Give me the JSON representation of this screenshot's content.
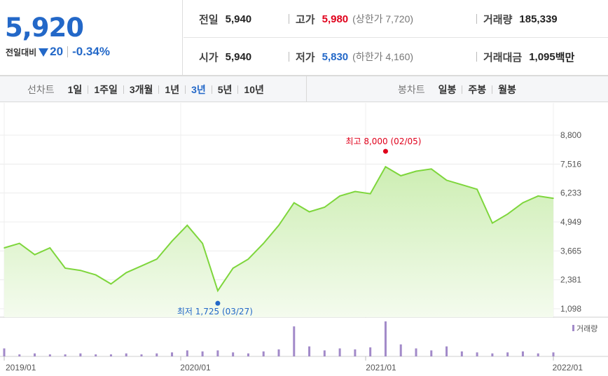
{
  "summary": {
    "price": "5,920",
    "change_label": "전일대비",
    "change_icon": "down-triangle-icon",
    "change_value": "20",
    "change_percent": "-0.34%",
    "colors": {
      "down": "#2368c8",
      "up": "#e0001b"
    },
    "prev_close": {
      "label": "전일",
      "value": "5,940"
    },
    "open": {
      "label": "시가",
      "value": "5,940"
    },
    "high": {
      "label": "고가",
      "value": "5,980",
      "sub": "(상한가 7,720)"
    },
    "low": {
      "label": "저가",
      "value": "5,830",
      "sub": "(하한가 4,160)"
    },
    "volume": {
      "label": "거래량",
      "value": "185,339"
    },
    "amount": {
      "label": "거래대금",
      "value": "1,095",
      "unit": "백만"
    }
  },
  "tabs": {
    "line_title": "선차트",
    "line_periods": [
      "1일",
      "1주일",
      "3개월",
      "1년",
      "3년",
      "5년",
      "10년"
    ],
    "line_active": "3년",
    "candle_title": "봉차트",
    "candle_periods": [
      "일봉",
      "주봉",
      "월봉"
    ]
  },
  "chart_data": {
    "type": "area",
    "line_color": "#7ed63c",
    "fill_color": "#d9f5c4",
    "volume_color": "#a28ac9",
    "y_ticks": [
      "8,800",
      "7,516",
      "6,233",
      "4,949",
      "3,665",
      "2,381",
      "1,098"
    ],
    "ylim": [
      1098,
      8800
    ],
    "x_ticks": [
      "2019/01",
      "2020/01",
      "2021/01",
      "2022/01"
    ],
    "high_annotation": "최고 8,000 (02/05)",
    "low_annotation": "최저 1,725 (03/27)",
    "volume_legend": "거래량",
    "dates": [
      "2019/01",
      "2019/02",
      "2019/03",
      "2019/04",
      "2019/05",
      "2019/06",
      "2019/07",
      "2019/08",
      "2019/09",
      "2019/10",
      "2019/11",
      "2019/12",
      "2020/01",
      "2020/02",
      "2020/03",
      "2020/04",
      "2020/05",
      "2020/06",
      "2020/07",
      "2020/08",
      "2020/09",
      "2020/10",
      "2020/11",
      "2020/12",
      "2021/01",
      "2021/02",
      "2021/03",
      "2021/04",
      "2021/05",
      "2021/06",
      "2021/07",
      "2021/08",
      "2021/09",
      "2021/10",
      "2021/11",
      "2021/12",
      "2022/01"
    ],
    "prices": [
      3800,
      4000,
      3500,
      3800,
      2900,
      2800,
      2600,
      2200,
      2700,
      3000,
      3300,
      4100,
      4800,
      4000,
      1900,
      2900,
      3300,
      4000,
      4800,
      5800,
      5400,
      5600,
      6100,
      6300,
      6200,
      7400,
      7000,
      7200,
      7300,
      6800,
      6600,
      6400,
      4900,
      5300,
      5800,
      6100,
      6000
    ],
    "volumes": [
      8,
      2,
      3,
      2,
      2,
      3,
      2,
      2,
      3,
      2,
      3,
      4,
      6,
      5,
      6,
      4,
      3,
      5,
      7,
      30,
      10,
      6,
      8,
      7,
      9,
      35,
      12,
      8,
      6,
      10,
      5,
      4,
      3,
      4,
      5,
      3,
      4
    ]
  }
}
